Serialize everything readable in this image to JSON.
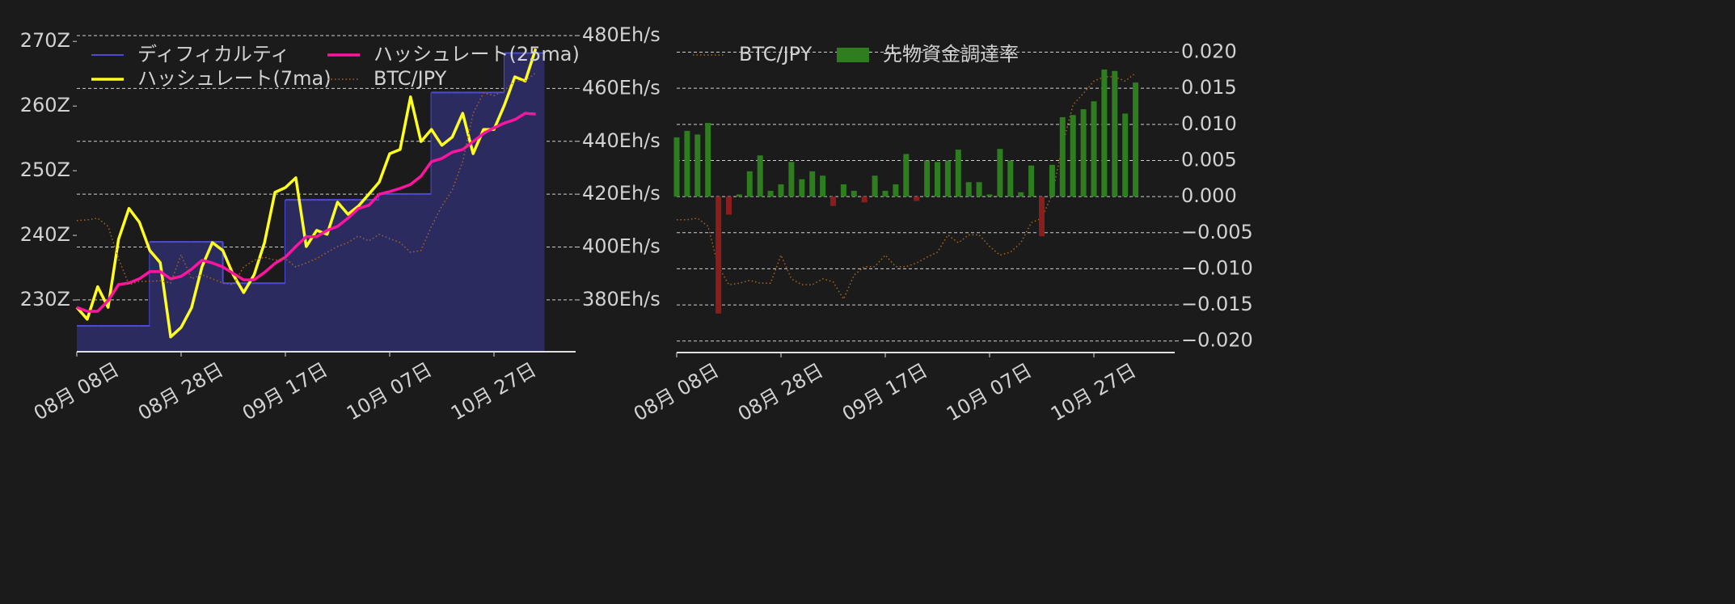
{
  "chart_data": [
    {
      "type": "line",
      "categories": [
        "08-08",
        "08-10",
        "08-12",
        "08-14",
        "08-16",
        "08-18",
        "08-20",
        "08-22",
        "08-24",
        "08-26",
        "08-28",
        "08-30",
        "09-01",
        "09-03",
        "09-05",
        "09-07",
        "09-09",
        "09-11",
        "09-13",
        "09-15",
        "09-17",
        "09-19",
        "09-21",
        "09-23",
        "09-25",
        "09-27",
        "09-29",
        "10-01",
        "10-03",
        "10-05",
        "10-07",
        "10-09",
        "10-11",
        "10-13",
        "10-15",
        "10-17",
        "10-19",
        "10-21",
        "10-23",
        "10-25",
        "10-27",
        "10-29",
        "10-31",
        "11-02",
        "11-04"
      ],
      "xticks": [
        {
          "value": "08-08",
          "label": "08月 08日"
        },
        {
          "value": "08-28",
          "label": "08月 28日"
        },
        {
          "value": "09-17",
          "label": "09月 17日"
        },
        {
          "value": "10-07",
          "label": "10月 07日"
        },
        {
          "value": "10-27",
          "label": "10月 27日"
        }
      ],
      "ylim": [
        222,
        270.9
      ],
      "yticks": [
        {
          "value": 230,
          "label": "230Z"
        },
        {
          "value": 240,
          "label": "240Z"
        },
        {
          "value": 250,
          "label": "250Z"
        },
        {
          "value": 260,
          "label": "260Z"
        },
        {
          "value": 270,
          "label": "270Z"
        }
      ],
      "y2lim": [
        360.4,
        480
      ],
      "y2ticks": [
        {
          "value": 380,
          "label": "380Eh/s"
        },
        {
          "value": 400,
          "label": "400Eh/s"
        },
        {
          "value": 420,
          "label": "420Eh/s"
        },
        {
          "value": 440,
          "label": "440Eh/s"
        },
        {
          "value": 460,
          "label": "460Eh/s"
        },
        {
          "value": 480,
          "label": "480Eh/s"
        }
      ],
      "grid_axis": "y2",
      "series": [
        {
          "name": "ディフィカルティ",
          "style": "step-area",
          "axis": "y",
          "color": "#4b4bd6",
          "fill": "#2b2b60",
          "width": 2,
          "values": [
            226,
            226,
            226,
            226,
            226,
            226,
            226,
            239,
            239,
            239,
            239,
            239,
            239,
            239,
            232.6,
            232.6,
            232.6,
            232.6,
            232.6,
            232.6,
            245.5,
            245.5,
            245.5,
            245.5,
            245.5,
            245.5,
            245.5,
            245.5,
            245.5,
            246.4,
            246.4,
            246.4,
            246.4,
            246.4,
            262.1,
            262.1,
            262.1,
            262.1,
            262.1,
            262.1,
            262.1,
            268.2,
            268.2,
            268.2,
            268.2
          ]
        },
        {
          "name": "ハッシュレート(7ma)",
          "style": "line",
          "axis": "y2",
          "color": "#ffff1e",
          "width": 3.5,
          "values": [
            377.2,
            372.7,
            385,
            377.2,
            402.9,
            414.6,
            409.4,
            398.7,
            394.1,
            366,
            369.6,
            377,
            392.5,
            401.7,
            398.7,
            389.5,
            382.8,
            389.5,
            401.7,
            420.7,
            422.5,
            426.2,
            400.2,
            406.3,
            404.8,
            417,
            412.4,
            415.5,
            420,
            424.6,
            435.3,
            436.9,
            456.8,
            439.9,
            444.5,
            438.5,
            441.6,
            450.6,
            435.3,
            444.5,
            444.5,
            453.7,
            464.4,
            462.8,
            475
          ]
        },
        {
          "name": "ハッシュレート(25ma)",
          "style": "line",
          "axis": "y2",
          "color": "#ff14a0",
          "width": 3.5,
          "values": [
            377.2,
            375.7,
            375.7,
            379.7,
            385.8,
            386.4,
            388,
            390.7,
            390.7,
            388,
            388.9,
            391.6,
            395,
            394,
            392.5,
            390,
            387.6,
            387.6,
            390.4,
            393.8,
            396.2,
            400.2,
            403.9,
            403.9,
            406.3,
            407.8,
            410.9,
            414.6,
            415.8,
            420,
            421,
            422.2,
            423.7,
            426.8,
            432.3,
            433.5,
            435.9,
            436.9,
            439.9,
            443,
            445.1,
            446.9,
            448.2,
            450.6,
            450.3
          ]
        },
        {
          "name": "BTC/JPY",
          "style": "dotted",
          "axis": "y2",
          "color": "#a8651e",
          "width": 1.5,
          "values": [
            410,
            410.3,
            410.9,
            407.8,
            395.6,
            385.8,
            387,
            387,
            387.3,
            386.4,
            397.1,
            388,
            389.5,
            388,
            386.4,
            385.8,
            392.5,
            395,
            396.2,
            395,
            395.6,
            392.5,
            394,
            395.6,
            398,
            400.2,
            401.7,
            404.2,
            402.3,
            404.8,
            403.2,
            401.7,
            398,
            398.7,
            407.8,
            415.5,
            421.6,
            432.3,
            450.6,
            458.3,
            457.3,
            459.2,
            462.8,
            462.8,
            465.9
          ]
        }
      ]
    },
    {
      "type": "bar",
      "categories": [
        "08-08",
        "08-10",
        "08-12",
        "08-14",
        "08-16",
        "08-18",
        "08-20",
        "08-22",
        "08-24",
        "08-26",
        "08-28",
        "08-30",
        "09-01",
        "09-03",
        "09-05",
        "09-07",
        "09-09",
        "09-11",
        "09-13",
        "09-15",
        "09-17",
        "09-19",
        "09-21",
        "09-23",
        "09-25",
        "09-27",
        "09-29",
        "10-01",
        "10-03",
        "10-05",
        "10-07",
        "10-09",
        "10-11",
        "10-13",
        "10-15",
        "10-17",
        "10-19",
        "10-21",
        "10-23",
        "10-25",
        "10-27",
        "10-29",
        "10-31",
        "11-02",
        "11-04"
      ],
      "xticks": [
        {
          "value": "08-08",
          "label": "08月 08日"
        },
        {
          "value": "08-28",
          "label": "08月 28日"
        },
        {
          "value": "09-17",
          "label": "09月 17日"
        },
        {
          "value": "10-07",
          "label": "10月 07日"
        },
        {
          "value": "10-27",
          "label": "10月 27日"
        }
      ],
      "ylim": [
        -0.0216,
        0.0223
      ],
      "yticks": [
        {
          "value": -0.02,
          "label": "−0.020"
        },
        {
          "value": -0.015,
          "label": "−0.015"
        },
        {
          "value": -0.01,
          "label": "−0.010"
        },
        {
          "value": -0.005,
          "label": "−0.005"
        },
        {
          "value": 0,
          "label": "0.000"
        },
        {
          "value": 0.005,
          "label": "0.005"
        },
        {
          "value": 0.01,
          "label": "0.010"
        },
        {
          "value": 0.015,
          "label": "0.015"
        },
        {
          "value": 0.02,
          "label": "0.020"
        }
      ],
      "yaxis_side": "right",
      "grid_axis": "y",
      "series": [
        {
          "name": "BTC/JPY",
          "style": "dotted",
          "axis": "y",
          "color": "#a8651e",
          "width": 1.5,
          "values": [
            -0.0032,
            -0.0032,
            -0.003,
            -0.0041,
            -0.0097,
            -0.0122,
            -0.012,
            -0.0116,
            -0.012,
            -0.012,
            -0.0081,
            -0.0114,
            -0.0122,
            -0.0122,
            -0.0114,
            -0.0118,
            -0.0142,
            -0.0109,
            -0.0097,
            -0.0097,
            -0.0081,
            -0.0097,
            -0.0097,
            -0.0092,
            -0.0084,
            -0.0077,
            -0.0053,
            -0.0064,
            -0.0053,
            -0.0053,
            -0.0069,
            -0.0081,
            -0.0077,
            -0.0064,
            -0.0036,
            -0.003,
            0.0003,
            0.0071,
            0.0127,
            0.0143,
            0.016,
            0.0166,
            0.0166,
            0.016,
            0.0171
          ]
        },
        {
          "name": "先物資金調達率",
          "style": "bar",
          "axis": "y",
          "color": "#2e7d1e",
          "neg_color": "#8b1d1d",
          "values": [
            0.0082,
            0.0091,
            0.0086,
            0.0102,
            -0.0162,
            -0.0025,
            0.0003,
            0.0035,
            0.0057,
            0.0008,
            0.0017,
            0.0048,
            0.0024,
            0.0035,
            0.0029,
            -0.0013,
            0.0017,
            0.0008,
            -0.0008,
            0.0029,
            0.0008,
            0.0017,
            0.0059,
            -0.0006,
            0.005,
            0.0048,
            0.005,
            0.0065,
            0.002,
            0.002,
            0.0003,
            0.0066,
            0.005,
            0.0006,
            0.0043,
            -0.0055,
            0.0044,
            0.011,
            0.0113,
            0.0121,
            0.0132,
            0.0176,
            0.0174,
            0.0115,
            0.0158
          ]
        }
      ]
    }
  ]
}
